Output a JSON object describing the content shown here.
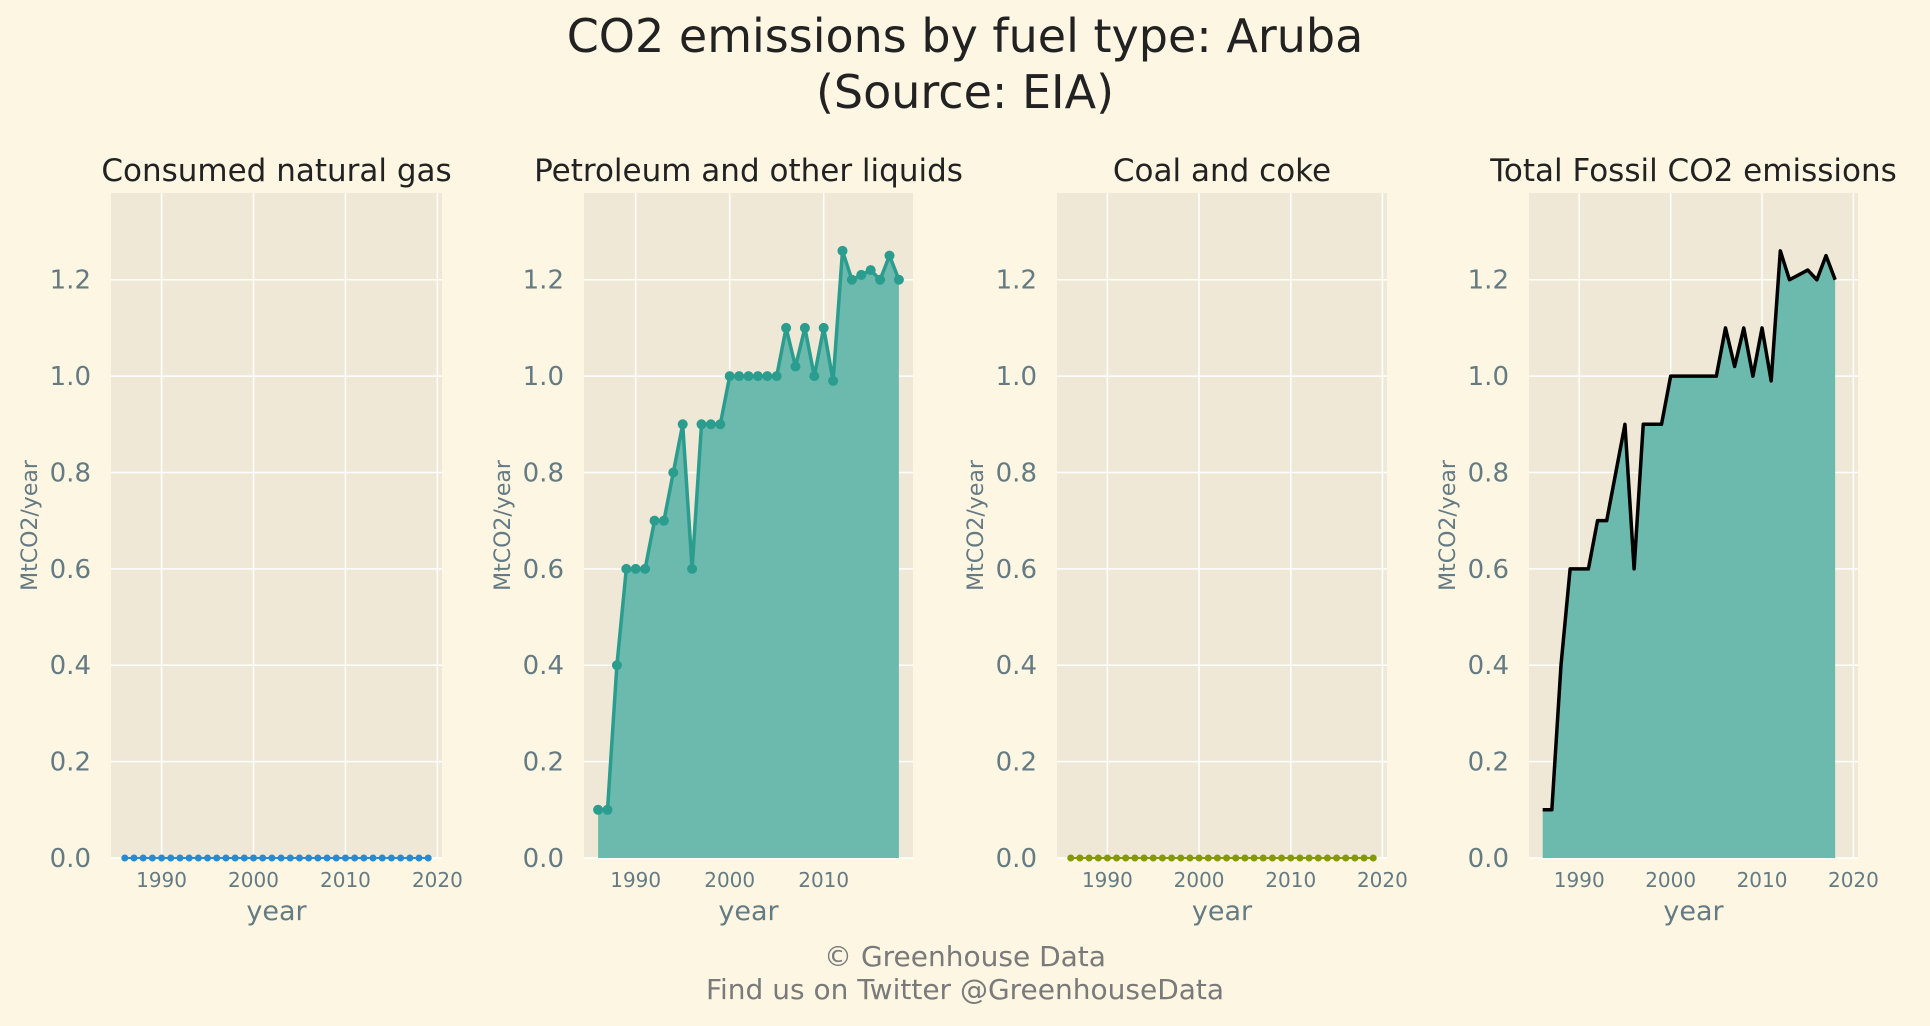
{
  "title_line1": "CO2 emissions by fuel type: Aruba",
  "title_line2": "(Source: EIA)",
  "footer_line1": "© Greenhouse Data",
  "footer_line2": "Find us on Twitter @GreenhouseData",
  "colors": {
    "background": "#fdf6e3",
    "panel_bg": "#efe8d6",
    "grid": "#ffffff",
    "gas": "#268bd2",
    "petroleum_line": "#2a9d8f",
    "petroleum_fill": "#6cb9ad",
    "coal": "#859900",
    "total_line": "#000000",
    "total_fill": "#6cb9ad"
  },
  "chart_data": [
    {
      "type": "line",
      "title": "Consumed natural gas",
      "xlabel": "year",
      "ylabel": "MtCO2/year",
      "x_ticks": [
        1990,
        2000,
        2010,
        2020
      ],
      "y_ticks": [
        "0.0",
        "0.2",
        "0.4",
        "0.6",
        "0.8",
        "1.0",
        "1.2"
      ],
      "xlim": [
        1984.5,
        2020.5
      ],
      "ylim": [
        0,
        1.38
      ],
      "markers": true,
      "fill": false,
      "series": [
        {
          "x": [
            1986,
            1987,
            1988,
            1989,
            1990,
            1991,
            1992,
            1993,
            1994,
            1995,
            1996,
            1997,
            1998,
            1999,
            2000,
            2001,
            2002,
            2003,
            2004,
            2005,
            2006,
            2007,
            2008,
            2009,
            2010,
            2011,
            2012,
            2013,
            2014,
            2015,
            2016,
            2017,
            2018,
            2019
          ],
          "values": [
            0,
            0,
            0,
            0,
            0,
            0,
            0,
            0,
            0,
            0,
            0,
            0,
            0,
            0,
            0,
            0,
            0,
            0,
            0,
            0,
            0,
            0,
            0,
            0,
            0,
            0,
            0,
            0,
            0,
            0,
            0,
            0,
            0,
            0
          ]
        }
      ]
    },
    {
      "type": "area",
      "title": "Petroleum and other liquids",
      "xlabel": "year",
      "ylabel": "MtCO2/year",
      "x_ticks": [
        1990,
        2000,
        2010
      ],
      "y_ticks": [
        "0.0",
        "0.2",
        "0.4",
        "0.6",
        "0.8",
        "1.0",
        "1.2"
      ],
      "xlim": [
        1984.5,
        2019.5
      ],
      "ylim": [
        0,
        1.38
      ],
      "markers": true,
      "fill": true,
      "series": [
        {
          "x": [
            1986,
            1987,
            1988,
            1989,
            1990,
            1991,
            1992,
            1993,
            1994,
            1995,
            1996,
            1997,
            1998,
            1999,
            2000,
            2001,
            2002,
            2003,
            2004,
            2005,
            2006,
            2007,
            2008,
            2009,
            2010,
            2011,
            2012,
            2013,
            2014,
            2015,
            2016,
            2017,
            2018
          ],
          "values": [
            0.1,
            0.1,
            0.4,
            0.6,
            0.6,
            0.6,
            0.7,
            0.7,
            0.8,
            0.9,
            0.6,
            0.9,
            0.9,
            0.9,
            1.0,
            1.0,
            1.0,
            1.0,
            1.0,
            1.0,
            1.1,
            1.02,
            1.1,
            1.0,
            1.1,
            0.99,
            1.26,
            1.2,
            1.21,
            1.22,
            1.2,
            1.25,
            1.2
          ]
        }
      ]
    },
    {
      "type": "line",
      "title": "Coal and coke",
      "xlabel": "year",
      "ylabel": "MtCO2/year",
      "x_ticks": [
        1990,
        2000,
        2010,
        2020
      ],
      "y_ticks": [
        "0.0",
        "0.2",
        "0.4",
        "0.6",
        "0.8",
        "1.0",
        "1.2"
      ],
      "xlim": [
        1984.5,
        2020.5
      ],
      "ylim": [
        0,
        1.38
      ],
      "markers": true,
      "fill": false,
      "series": [
        {
          "x": [
            1986,
            1987,
            1988,
            1989,
            1990,
            1991,
            1992,
            1993,
            1994,
            1995,
            1996,
            1997,
            1998,
            1999,
            2000,
            2001,
            2002,
            2003,
            2004,
            2005,
            2006,
            2007,
            2008,
            2009,
            2010,
            2011,
            2012,
            2013,
            2014,
            2015,
            2016,
            2017,
            2018,
            2019
          ],
          "values": [
            0,
            0,
            0,
            0,
            0,
            0,
            0,
            0,
            0,
            0,
            0,
            0,
            0,
            0,
            0,
            0,
            0,
            0,
            0,
            0,
            0,
            0,
            0,
            0,
            0,
            0,
            0,
            0,
            0,
            0,
            0,
            0,
            0,
            0
          ]
        }
      ]
    },
    {
      "type": "area",
      "title": "Total Fossil CO2 emissions",
      "xlabel": "year",
      "ylabel": "MtCO2/year",
      "x_ticks": [
        1990,
        2000,
        2010,
        2020
      ],
      "y_ticks": [
        "0.0",
        "0.2",
        "0.4",
        "0.6",
        "0.8",
        "1.0",
        "1.2"
      ],
      "xlim": [
        1984.5,
        2020.5
      ],
      "ylim": [
        0,
        1.38
      ],
      "markers": false,
      "fill": true,
      "series": [
        {
          "x": [
            1986,
            1987,
            1988,
            1989,
            1990,
            1991,
            1992,
            1993,
            1994,
            1995,
            1996,
            1997,
            1998,
            1999,
            2000,
            2001,
            2002,
            2003,
            2004,
            2005,
            2006,
            2007,
            2008,
            2009,
            2010,
            2011,
            2012,
            2013,
            2014,
            2015,
            2016,
            2017,
            2018
          ],
          "values": [
            0.1,
            0.1,
            0.4,
            0.6,
            0.6,
            0.6,
            0.7,
            0.7,
            0.8,
            0.9,
            0.6,
            0.9,
            0.9,
            0.9,
            1.0,
            1.0,
            1.0,
            1.0,
            1.0,
            1.0,
            1.1,
            1.02,
            1.1,
            1.0,
            1.1,
            0.99,
            1.26,
            1.2,
            1.21,
            1.22,
            1.2,
            1.25,
            1.2
          ]
        }
      ]
    }
  ]
}
